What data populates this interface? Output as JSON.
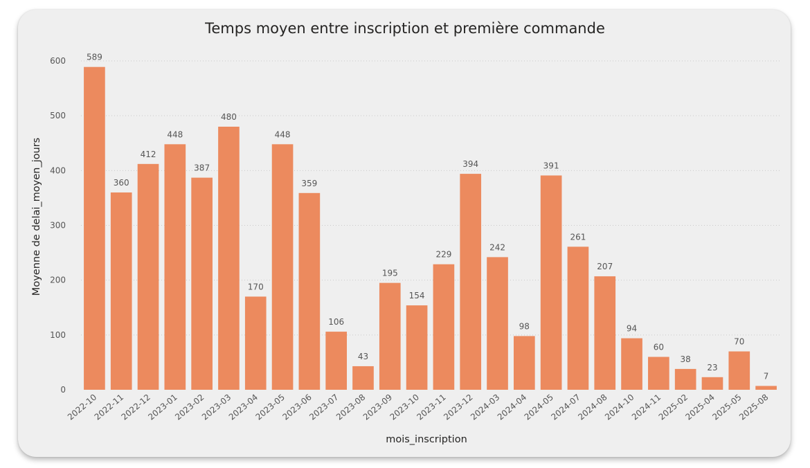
{
  "chart_data": {
    "type": "bar",
    "title": "Temps moyen entre inscription et première commande",
    "xlabel": "mois_inscription",
    "ylabel": "Moyenne de delai_moyen_jours",
    "ylim": [
      0,
      600
    ],
    "yticks": [
      0,
      100,
      200,
      300,
      400,
      500,
      600
    ],
    "grid": true,
    "bar_color": "#EC8A5E",
    "categories": [
      "2022-10",
      "2022-11",
      "2022-12",
      "2023-01",
      "2023-02",
      "2023-03",
      "2023-04",
      "2023-05",
      "2023-06",
      "2023-07",
      "2023-08",
      "2023-09",
      "2023-10",
      "2023-11",
      "2023-12",
      "2024-03",
      "2024-04",
      "2024-05",
      "2024-07",
      "2024-08",
      "2024-10",
      "2024-11",
      "2025-02",
      "2025-04",
      "2025-05",
      "2025-08"
    ],
    "values": [
      589,
      360,
      412,
      448,
      387,
      480,
      170,
      448,
      359,
      106,
      43,
      195,
      154,
      229,
      394,
      242,
      98,
      391,
      261,
      207,
      94,
      60,
      38,
      23,
      70,
      7
    ]
  }
}
